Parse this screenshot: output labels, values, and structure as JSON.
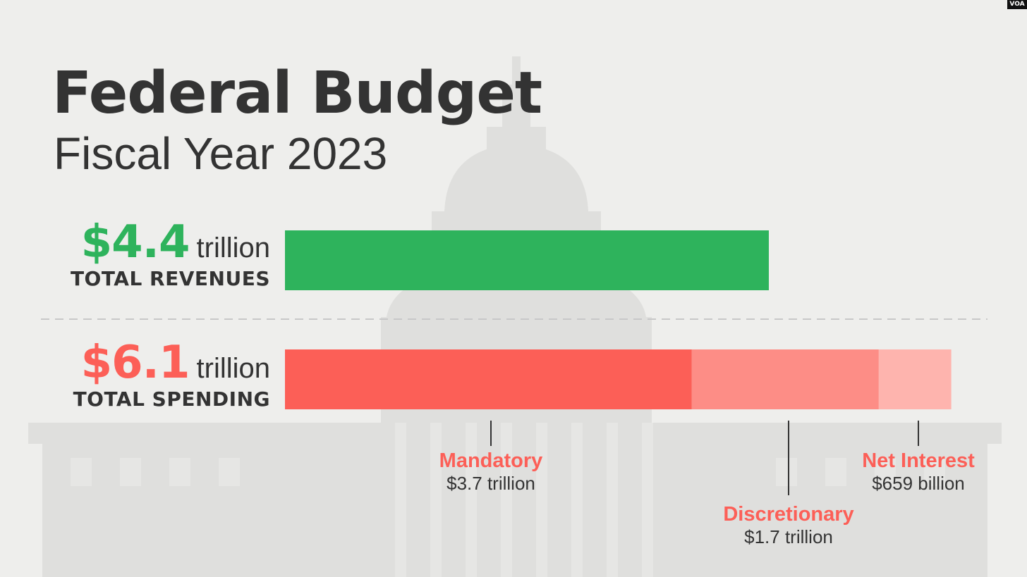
{
  "brand": "VOA",
  "colors": {
    "revenue": "#2eb35c",
    "mandatory": "#fc5f57",
    "discretionary": "#fd8d86",
    "net_interest": "#feb4ae",
    "text": "#333333",
    "divider": "#c8c8c8"
  },
  "chart_data": {
    "type": "bar",
    "orientation": "horizontal",
    "title": "Federal Budget",
    "subtitle": "Fiscal Year 2023",
    "unit": "trillion USD",
    "xlim": [
      0,
      6.1
    ],
    "grid": false,
    "revenue": {
      "value": 4.4,
      "value_label": "$4.4",
      "unit_label": "trillion",
      "label": "TOTAL REVENUES"
    },
    "spending": {
      "value": 6.1,
      "value_label": "$6.1",
      "unit_label": "trillion",
      "label": "TOTAL SPENDING",
      "segments": [
        {
          "name": "Mandatory",
          "value": 3.7,
          "value_label": "$3.7 trillion"
        },
        {
          "name": "Discretionary",
          "value": 1.7,
          "value_label": "$1.7 trillion"
        },
        {
          "name": "Net Interest",
          "value": 0.659,
          "value_label": "$659 billion"
        }
      ]
    }
  }
}
